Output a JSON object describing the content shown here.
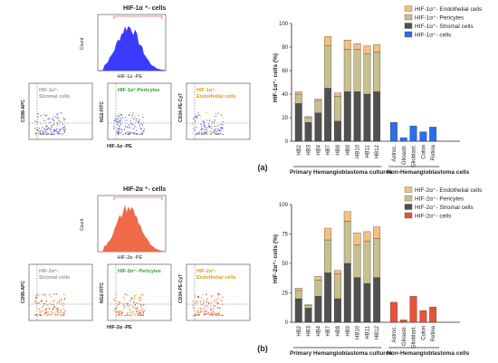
{
  "panels": [
    {
      "label": "(a)",
      "histogram": {
        "title": "HIF-1α ⁺- cells",
        "xlabel": "HIF-1α -PE",
        "ylabel": "Count",
        "color": "#3b3bff"
      },
      "scatter": {
        "xlabel": "HIF-1α -PE",
        "plots": [
          {
            "ylabel": "CD99-APC",
            "gate_label": "HIF-1α⁺- Stromal cells",
            "gate_color": "#9a9a9a",
            "dot_color": "#3c4cf0"
          },
          {
            "ylabel": "NG2-FITC",
            "gate_label": "HIF-1α⁺-Pericytes",
            "gate_color": "#2e9a2e",
            "dot_color": "#3c4cf0"
          },
          {
            "ylabel": "CD34-PE-Cy7",
            "gate_label": "HIF-1α⁺- Endothelial cells",
            "gate_color": "#d8a020",
            "dot_color": "#3c4cf0"
          }
        ]
      },
      "neg_color": "#2a6ee8"
    },
    {
      "label": "(b)",
      "histogram": {
        "title": "HIF-2α ⁺- cells",
        "xlabel": "HIF-2α -PE",
        "ylabel": "Count",
        "color": "#f06a4a"
      },
      "scatter": {
        "xlabel": "HIF-2α -PE",
        "plots": [
          {
            "ylabel": "CD99-APC",
            "gate_label": "HIF-2α⁺- Stromal cells",
            "gate_color": "#9a9a9a",
            "dot_color": "#f05a3a"
          },
          {
            "ylabel": "NG2-FITC",
            "gate_label": "HIF-2α⁺- Pericytes",
            "gate_color": "#2e9a2e",
            "dot_color": "#f05a3a"
          },
          {
            "ylabel": "CD34-PE-Cy7",
            "gate_label": "HIF-2α⁺- Endothelial cells",
            "gate_color": "#d8a020",
            "dot_color": "#f05a3a"
          }
        ]
      },
      "neg_color": "#e8533a"
    }
  ],
  "chart_data": [
    {
      "type": "bar",
      "stacked": true,
      "ylabel": "HIF-1α⁺- cells (%)",
      "ylim": [
        0,
        100
      ],
      "yticks": [
        0,
        20,
        40,
        60,
        80,
        100
      ],
      "groups": [
        {
          "label": "Primary Hemangioblastoma cultures",
          "categories": [
            "HB2",
            "HB3",
            "HB4",
            "HB7",
            "HB8",
            "HB9",
            "HB10",
            "HB11",
            "HB12"
          ]
        },
        {
          "label": "Non-Hemangioblastoma cells",
          "categories": [
            "Astroc.",
            "Glioastr.",
            "Glioblast.",
            "Colon",
            "Retina"
          ]
        }
      ],
      "series": [
        {
          "name": "HIF-1α⁺- Stromal cells",
          "color": "#505050",
          "values": [
            32,
            16,
            24,
            45,
            17,
            42,
            42,
            40,
            42
          ]
        },
        {
          "name": "HIF-1α⁺- Pericytes",
          "color": "#c9c08e",
          "values": [
            8,
            4,
            10,
            36,
            21,
            36,
            36,
            34,
            34
          ]
        },
        {
          "name": "HIF-1α⁺- Endothelial cells",
          "color": "#f5c180",
          "values": [
            2,
            1,
            2,
            8,
            3,
            8,
            5,
            7,
            6
          ]
        }
      ],
      "neg_series": {
        "name": "HIF-1α⁺- cells",
        "color": "#2a6ee8",
        "values": [
          16,
          3,
          13,
          8,
          12
        ]
      },
      "legend_position": "top-right"
    },
    {
      "type": "bar",
      "stacked": true,
      "ylabel": "HIF-2α⁺- cells (%)",
      "ylim": [
        0,
        100
      ],
      "yticks": [
        0,
        25,
        50,
        75,
        100
      ],
      "groups": [
        {
          "label": "Primary Hemangioblastoma cultures",
          "categories": [
            "HB2",
            "HB3",
            "HB4",
            "HB7",
            "HB8",
            "HB9",
            "HB10",
            "HB11",
            "HB12"
          ]
        },
        {
          "label": "Non-Hemangioblastoma cells",
          "categories": [
            "Astroc.",
            "Glioastr.",
            "Glioblast.",
            "Colon",
            "Retina"
          ]
        }
      ],
      "series": [
        {
          "name": "HIF-2α⁺- Stromal cells",
          "color": "#505050",
          "values": [
            20,
            12,
            22,
            42,
            20,
            50,
            38,
            33,
            38
          ]
        },
        {
          "name": "HIF-2α⁺- Pericytes",
          "color": "#c9c08e",
          "values": [
            7,
            2,
            14,
            28,
            21,
            36,
            28,
            36,
            33
          ]
        },
        {
          "name": "HIF-2α⁺- Endothelial cells",
          "color": "#f5c180",
          "values": [
            2,
            1,
            3,
            10,
            3,
            8,
            10,
            8,
            10
          ]
        }
      ],
      "neg_series": {
        "name": "HIF-2α⁺- cells",
        "color": "#e8533a",
        "values": [
          17,
          2,
          22,
          10,
          13
        ]
      },
      "legend_position": "top-right"
    }
  ]
}
